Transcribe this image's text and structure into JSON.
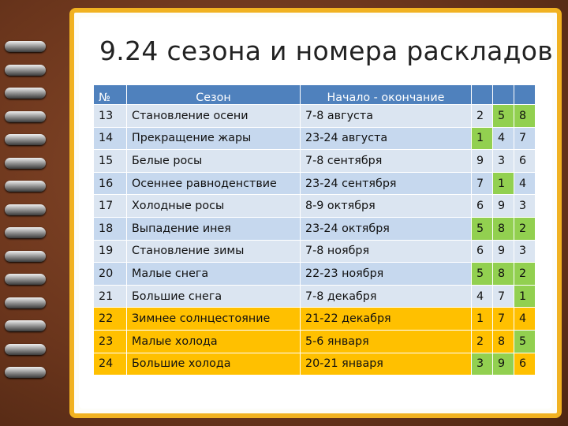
{
  "title": "9.24 сезона и номера раскладов",
  "table": {
    "headers": [
      "№",
      "Сезон",
      "Начало - окончание",
      "",
      "",
      ""
    ],
    "rows": [
      {
        "n": "13",
        "season": "Становление осени",
        "period": "7-8 августа",
        "a": "2",
        "b": "5",
        "c": "8",
        "hl": [
          0,
          1,
          1
        ],
        "band": "blue"
      },
      {
        "n": "14",
        "season": "Прекращение жары",
        "period": "23-24 августа",
        "a": "1",
        "b": "4",
        "c": "7",
        "hl": [
          1,
          0,
          0
        ],
        "band": "blue"
      },
      {
        "n": "15",
        "season": "Белые росы",
        "period": "7-8 сентября",
        "a": "9",
        "b": "3",
        "c": "6",
        "hl": [
          0,
          0,
          0
        ],
        "band": "blue"
      },
      {
        "n": "16",
        "season": "Осеннее равноденствие",
        "period": "23-24 сентября",
        "a": "7",
        "b": "1",
        "c": "4",
        "hl": [
          0,
          1,
          0
        ],
        "band": "blue"
      },
      {
        "n": "17",
        "season": "Холодные росы",
        "period": "8-9 октября",
        "a": "6",
        "b": "9",
        "c": "3",
        "hl": [
          0,
          0,
          0
        ],
        "band": "blue"
      },
      {
        "n": "18",
        "season": "Выпадение инея",
        "period": "23-24 октября",
        "a": "5",
        "b": "8",
        "c": "2",
        "hl": [
          1,
          1,
          1
        ],
        "band": "blue"
      },
      {
        "n": "19",
        "season": "Становление зимы",
        "period": "7-8 ноября",
        "a": "6",
        "b": "9",
        "c": "3",
        "hl": [
          0,
          0,
          0
        ],
        "band": "blue"
      },
      {
        "n": "20",
        "season": "Малые снега",
        "period": "22-23 ноября",
        "a": "5",
        "b": "8",
        "c": "2",
        "hl": [
          1,
          1,
          1
        ],
        "band": "blue"
      },
      {
        "n": "21",
        "season": "Большие снега",
        "period": "7-8 декабря",
        "a": "4",
        "b": "7",
        "c": "1",
        "hl": [
          0,
          0,
          1
        ],
        "band": "blue"
      },
      {
        "n": "22",
        "season": "Зимнее солнцестояние",
        "period": "21-22 декабря",
        "a": "1",
        "b": "7",
        "c": "4",
        "hl": [
          0,
          0,
          0
        ],
        "band": "gold"
      },
      {
        "n": "23",
        "season": "Малые холода",
        "period": "5-6 января",
        "a": "2",
        "b": "8",
        "c": "5",
        "hl": [
          0,
          0,
          1
        ],
        "band": "gold"
      },
      {
        "n": "24",
        "season": "Большие холода",
        "period": "20-21 января",
        "a": "3",
        "b": "9",
        "c": "6",
        "hl": [
          1,
          1,
          0
        ],
        "band": "gold"
      }
    ]
  },
  "colors": {
    "header": "#4f81bd",
    "row_light": "#dbe5f1",
    "row_dark": "#c6d8ee",
    "gold": "#ffc000",
    "green": "#92d050",
    "frame": "#f1b221",
    "cover": "#6b3a22"
  }
}
